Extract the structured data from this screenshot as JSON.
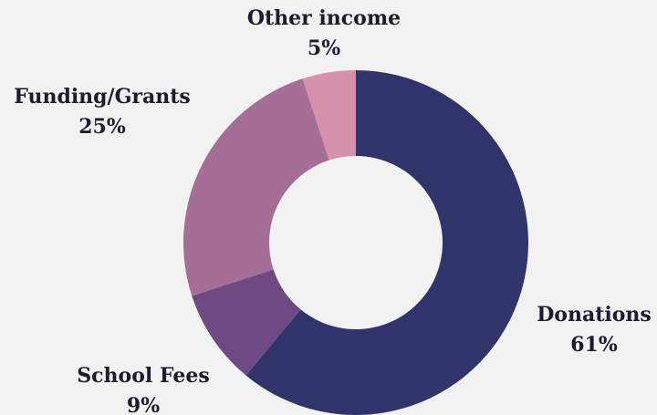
{
  "chart_data": {
    "type": "pie",
    "donut": true,
    "title": "",
    "slices": [
      {
        "label": "Donations",
        "value": 61,
        "value_label": "61%",
        "color": "#31346b"
      },
      {
        "label": "School Fees",
        "value": 9,
        "value_label": "9%",
        "color": "#6f4a82"
      },
      {
        "label": "Funding/Grants",
        "value": 25,
        "value_label": "25%",
        "color": "#a46e96"
      },
      {
        "label": "Other income",
        "value": 5,
        "value_label": "5%",
        "color": "#d590aa"
      }
    ],
    "start": "12 o'clock",
    "direction": "clockwise",
    "background": "#f2f2f2"
  }
}
